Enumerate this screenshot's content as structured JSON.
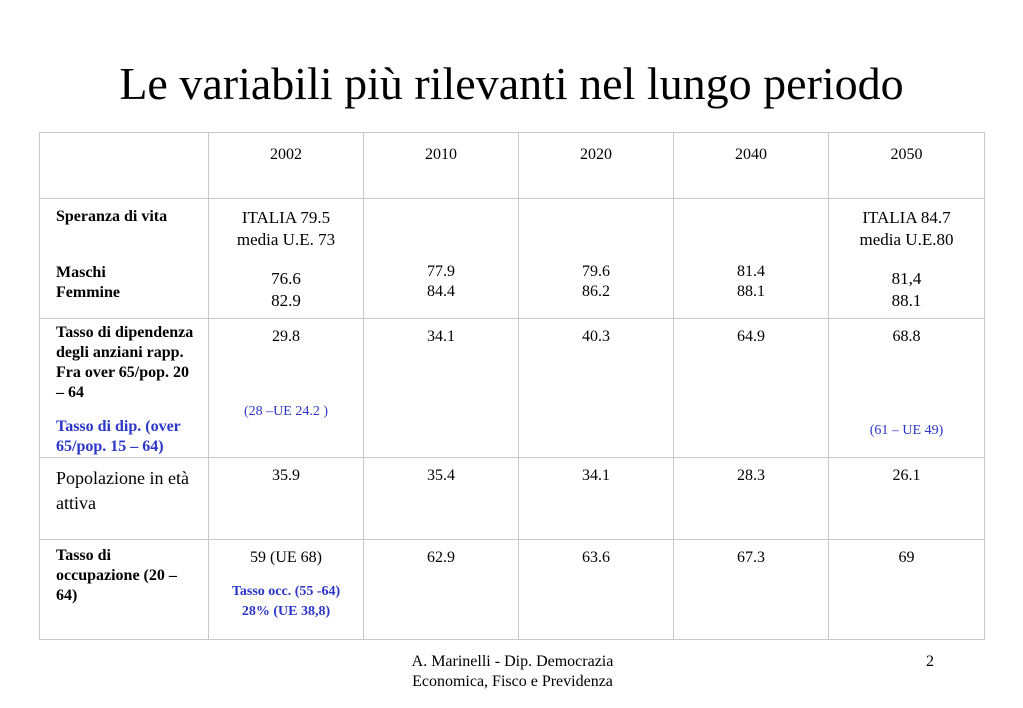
{
  "title": "Le variabili più rilevanti nel lungo periodo",
  "table": {
    "years": [
      "2002",
      "2010",
      "2020",
      "2040",
      "2050"
    ],
    "life": {
      "label": "Speranza di vita",
      "maschi": "Maschi",
      "femmine": "Femmine",
      "italia_2002": "ITALIA 79.5",
      "ue_2002": "media U.E. 73",
      "italia_2050": "ITALIA 84.7",
      "ue_2050": "media U.E.80",
      "m": [
        "76.6",
        "77.9",
        "79.6",
        "81.4",
        "81,4"
      ],
      "f": [
        "82.9",
        "84.4",
        "86.2",
        "88.1",
        "88.1"
      ]
    },
    "dep": {
      "label": "Tasso di dipendenza degli anziani rapp. Fra over 65/pop. 20 – 64",
      "label2": "Tasso di dip. (over 65/pop. 15 – 64)",
      "values": [
        "29.8",
        "34.1",
        "40.3",
        "64.9",
        "68.8"
      ],
      "note_2002": "(28 –UE 24.2 )",
      "note_2050": "(61 – UE 49)"
    },
    "pop": {
      "label": "Popolazione in età attiva",
      "values": [
        "35.9",
        "35.4",
        "34.1",
        "28.3",
        "26.1"
      ]
    },
    "occ": {
      "label": "Tasso di occupazione (20 – 64)",
      "values": [
        "59 (UE 68)",
        "62.9",
        "63.6",
        "67.3",
        "69"
      ],
      "note_2002": "Tasso occ. (55 -64) 28% (UE 38,8)"
    }
  },
  "footer": {
    "line1": "A. Marinelli - Dip. Democrazia",
    "line2": "Economica,  Fisco e Previdenza"
  },
  "page_number": "2"
}
